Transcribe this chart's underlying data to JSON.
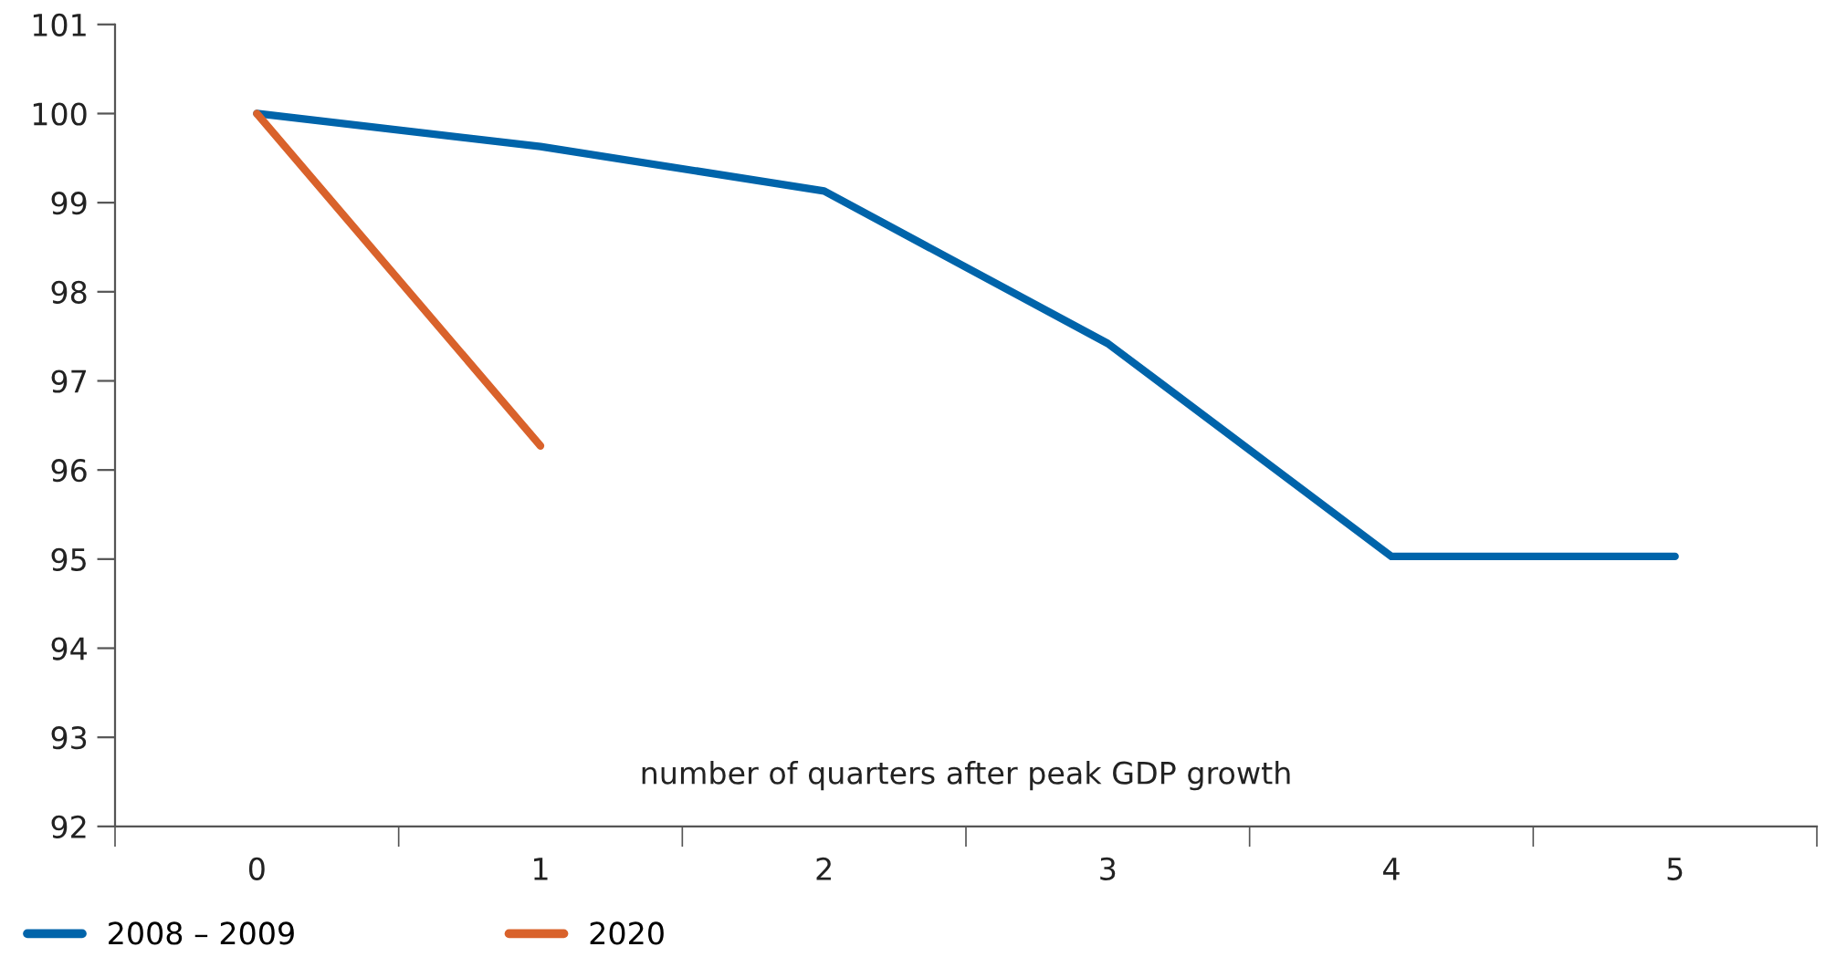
{
  "chart_data": {
    "type": "line",
    "xlabel": "number of quarters after peak GDP growth",
    "categories": [
      "0",
      "1",
      "2",
      "3",
      "4",
      "5"
    ],
    "series": [
      {
        "name": "2008 – 2009",
        "color": "#0064aa",
        "values": [
          100,
          99.63,
          99.13,
          97.42,
          95.03,
          95.03
        ]
      },
      {
        "name": "2020",
        "color": "#d9622b",
        "values": [
          100,
          96.27,
          null,
          null,
          null,
          null
        ]
      }
    ],
    "ylim": [
      92,
      101
    ],
    "yticks": [
      92,
      93,
      94,
      95,
      96,
      97,
      98,
      99,
      100,
      101
    ],
    "grid": false,
    "legend": "bottom left",
    "marker": "none",
    "line_style": "solid"
  }
}
